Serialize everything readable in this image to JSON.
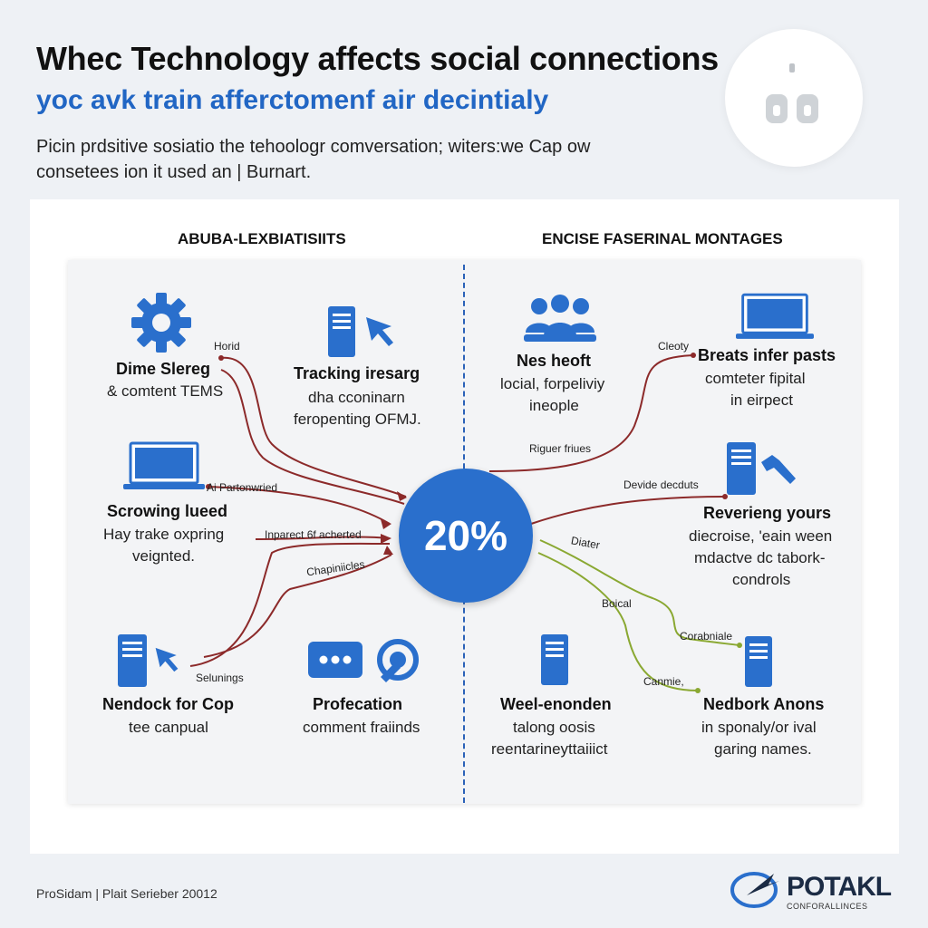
{
  "header": {
    "title": "Whec Technology affects social connections",
    "subtitle": "yoc avk train afferctomenf air decintialy",
    "intro_line1": "Picin prdsitive sosiatio the tehoologr comversation; witers:we Cap ow",
    "intro_line2": "consetees ion it used an | Burnart."
  },
  "panels": {
    "left_heading": "ABUBA-LEXBIATISIITS",
    "right_heading": "ENCISE FASERINAL MONTAGES"
  },
  "center": {
    "value": "20%"
  },
  "nodes": {
    "gear": {
      "title": "Dime Slereg",
      "desc": "& comtent TEMS"
    },
    "tracking": {
      "title": "Tracking iresarg",
      "desc1": "dha cconinarn",
      "desc2": "feropenting OFMJ."
    },
    "laptop_left": {
      "title": "Scrowing lueed",
      "desc1": "Hay trake oxpring",
      "desc2": "veignted."
    },
    "nendock": {
      "title": "Nendock for Cop",
      "desc": "tee canpual"
    },
    "profecation": {
      "title": "Profecation",
      "desc": "comment fraiinds"
    },
    "people": {
      "title": "Nes heoft",
      "desc1": "locial, forpeliviy",
      "desc2": "ineople"
    },
    "breats": {
      "title": "Breats infer pasts",
      "desc1": "comteter fipital",
      "desc2": "in eirpect"
    },
    "revereng": {
      "title": "Reverieng yours",
      "desc1": "diecroise, 'eain ween",
      "desc2": "mdactve dc tabork-",
      "desc3": "condrols"
    },
    "weel": {
      "title": "Weel-enonden",
      "desc1": "talong oosis",
      "desc2": "reentarineyttaiiict"
    },
    "nedbork": {
      "title": "Nedbork Anons",
      "desc1": "in sponaly/or ival",
      "desc2": "garing names."
    }
  },
  "edge_labels": {
    "horid": "Horid",
    "partonwried": "Ai Partonwried",
    "inparect": "Inparect 6f acherted",
    "chapinicles": "Chapiniicles",
    "selunings": "Selunings",
    "cleoty": "Cleoty",
    "riguer": "Riguer friues",
    "devide": "Devide decduts",
    "diater": "Diater",
    "boical": "Boical",
    "corabniale": "Corabniale",
    "canmie": "Canmie,"
  },
  "footer": {
    "credit": "ProSidam | Plait Serieber 20012",
    "logo_name": "POTAKL",
    "logo_sub": "CONFORALLINCES"
  },
  "colors": {
    "accent_blue": "#2a6fcc",
    "connector_red": "#8c2a2a",
    "connector_green": "#8aa832",
    "divider_blue": "#2b62b8"
  },
  "icons": [
    "gear-icon",
    "server-icon",
    "cursor-icon",
    "laptop-icon",
    "chat-icon",
    "support-icon",
    "people-icon",
    "wrench-icon",
    "plug-icon"
  ]
}
